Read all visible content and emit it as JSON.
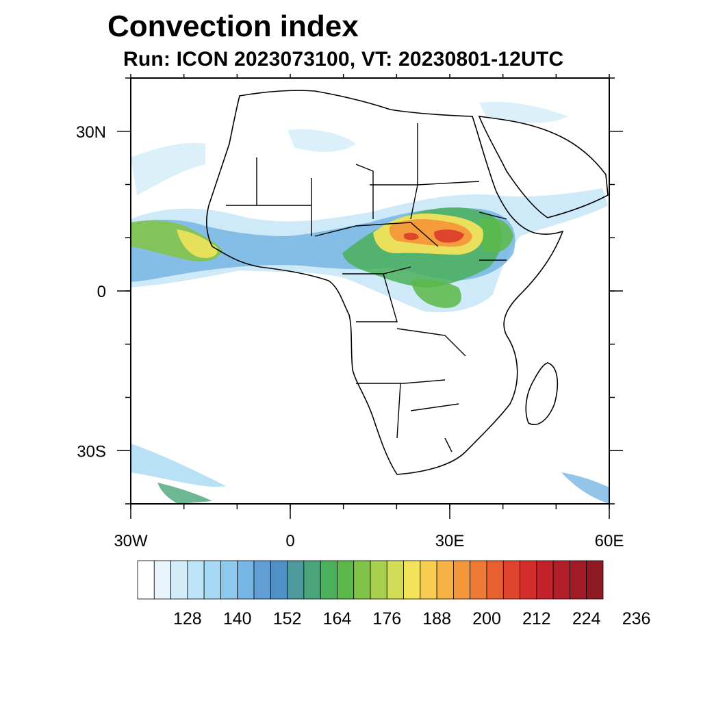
{
  "title": "Convection index",
  "subtitle": "Run: ICON 2023073100,  VT: 20230801-12UTC",
  "map": {
    "lon_range": [
      -30,
      60
    ],
    "lat_range": [
      -40,
      40
    ],
    "lat_labels": [
      {
        "lat": 30,
        "text": "30N"
      },
      {
        "lat": 0,
        "text": "0"
      },
      {
        "lat": -30,
        "text": "30S"
      }
    ],
    "lon_labels": [
      {
        "lon": -30,
        "text": "30W"
      },
      {
        "lon": 0,
        "text": "0"
      },
      {
        "lon": 30,
        "text": "30E"
      },
      {
        "lon": 60,
        "text": "60E"
      }
    ]
  },
  "colorbar": {
    "labels": [
      "128",
      "140",
      "152",
      "164",
      "176",
      "188",
      "200",
      "212",
      "224",
      "236"
    ],
    "colors": [
      "#ffffff",
      "#e8f5fc",
      "#d2ecf8",
      "#bde3f6",
      "#a6daf4",
      "#8dc9ee",
      "#77b6e4",
      "#619fd4",
      "#4f90c7",
      "#4c9a9c",
      "#4aa57b",
      "#4bb05b",
      "#5ab948",
      "#82c34a",
      "#a9cf4f",
      "#d1dd56",
      "#f2e35a",
      "#f7cc50",
      "#f6b244",
      "#f4973b",
      "#ef7a35",
      "#e85f30",
      "#df452d",
      "#d32e2b",
      "#c2232b",
      "#b21e2a",
      "#a11b27",
      "#8e1a24"
    ]
  },
  "fields": [
    {
      "name": "sahel-band-west",
      "color": "#a6daf4"
    },
    {
      "name": "atlantic-plume",
      "color": "#f2e35a"
    },
    {
      "name": "sudan-core",
      "color": "#df452d"
    }
  ]
}
